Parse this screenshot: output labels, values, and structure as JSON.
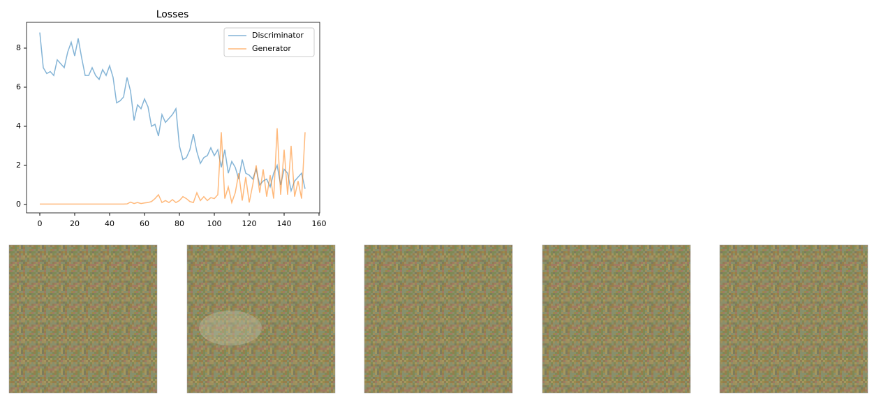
{
  "chart_data": {
    "type": "line",
    "title": "Losses",
    "x": [
      0,
      2,
      4,
      6,
      8,
      10,
      12,
      14,
      16,
      18,
      20,
      22,
      24,
      26,
      28,
      30,
      32,
      34,
      36,
      38,
      40,
      42,
      44,
      46,
      48,
      50,
      52,
      54,
      56,
      58,
      60,
      62,
      64,
      66,
      68,
      70,
      72,
      74,
      76,
      78,
      80,
      82,
      84,
      86,
      88,
      90,
      92,
      94,
      96,
      98,
      100,
      102,
      104,
      106,
      108,
      110,
      112,
      114,
      116,
      118,
      120,
      122,
      124,
      126,
      128,
      130,
      132,
      134,
      136,
      138,
      140,
      142,
      144,
      146,
      148,
      150,
      152
    ],
    "series": [
      {
        "name": "Discriminator",
        "color": "#1f77b4",
        "values": [
          8.8,
          7.0,
          6.7,
          6.8,
          6.6,
          7.4,
          7.2,
          7.0,
          7.8,
          8.3,
          7.6,
          8.5,
          7.5,
          6.6,
          6.6,
          7.0,
          6.6,
          6.4,
          6.9,
          6.6,
          7.1,
          6.5,
          5.2,
          5.3,
          5.5,
          6.5,
          5.8,
          4.3,
          5.1,
          4.9,
          5.4,
          5.0,
          4.0,
          4.1,
          3.5,
          4.6,
          4.2,
          4.4,
          4.6,
          4.9,
          3.0,
          2.3,
          2.4,
          2.8,
          3.6,
          2.7,
          2.1,
          2.4,
          2.5,
          2.9,
          2.5,
          2.8,
          1.9,
          2.8,
          1.6,
          2.2,
          1.9,
          1.3,
          2.3,
          1.6,
          1.5,
          1.3,
          1.8,
          1.0,
          1.2,
          1.3,
          0.9,
          1.6,
          2.0,
          1.0,
          1.8,
          1.6,
          0.7,
          1.2,
          1.4,
          1.6,
          0.8
        ]
      },
      {
        "name": "Generator",
        "color": "#ff7f0e",
        "values": [
          0.02,
          0.02,
          0.02,
          0.02,
          0.02,
          0.02,
          0.02,
          0.02,
          0.02,
          0.02,
          0.02,
          0.02,
          0.02,
          0.02,
          0.02,
          0.02,
          0.02,
          0.02,
          0.02,
          0.02,
          0.02,
          0.02,
          0.02,
          0.02,
          0.02,
          0.03,
          0.12,
          0.05,
          0.1,
          0.05,
          0.08,
          0.1,
          0.15,
          0.3,
          0.5,
          0.1,
          0.2,
          0.1,
          0.25,
          0.1,
          0.2,
          0.4,
          0.3,
          0.15,
          0.1,
          0.6,
          0.2,
          0.4,
          0.2,
          0.35,
          0.3,
          0.5,
          3.7,
          0.3,
          0.9,
          0.1,
          0.6,
          1.6,
          0.2,
          1.4,
          0.1,
          1.0,
          2.0,
          0.6,
          1.8,
          0.4,
          1.5,
          0.3,
          3.9,
          0.5,
          2.8,
          0.5,
          3.0,
          0.4,
          1.2,
          0.3,
          3.7
        ]
      }
    ],
    "xlim": [
      -7.6,
      160.4
    ],
    "ylim": [
      -0.43,
      9.32
    ],
    "xticks": [
      0,
      20,
      40,
      60,
      80,
      100,
      120,
      140,
      160
    ],
    "yticks": [
      0,
      2,
      4,
      6,
      8
    ],
    "legend": "upper right",
    "grid": false
  }
}
